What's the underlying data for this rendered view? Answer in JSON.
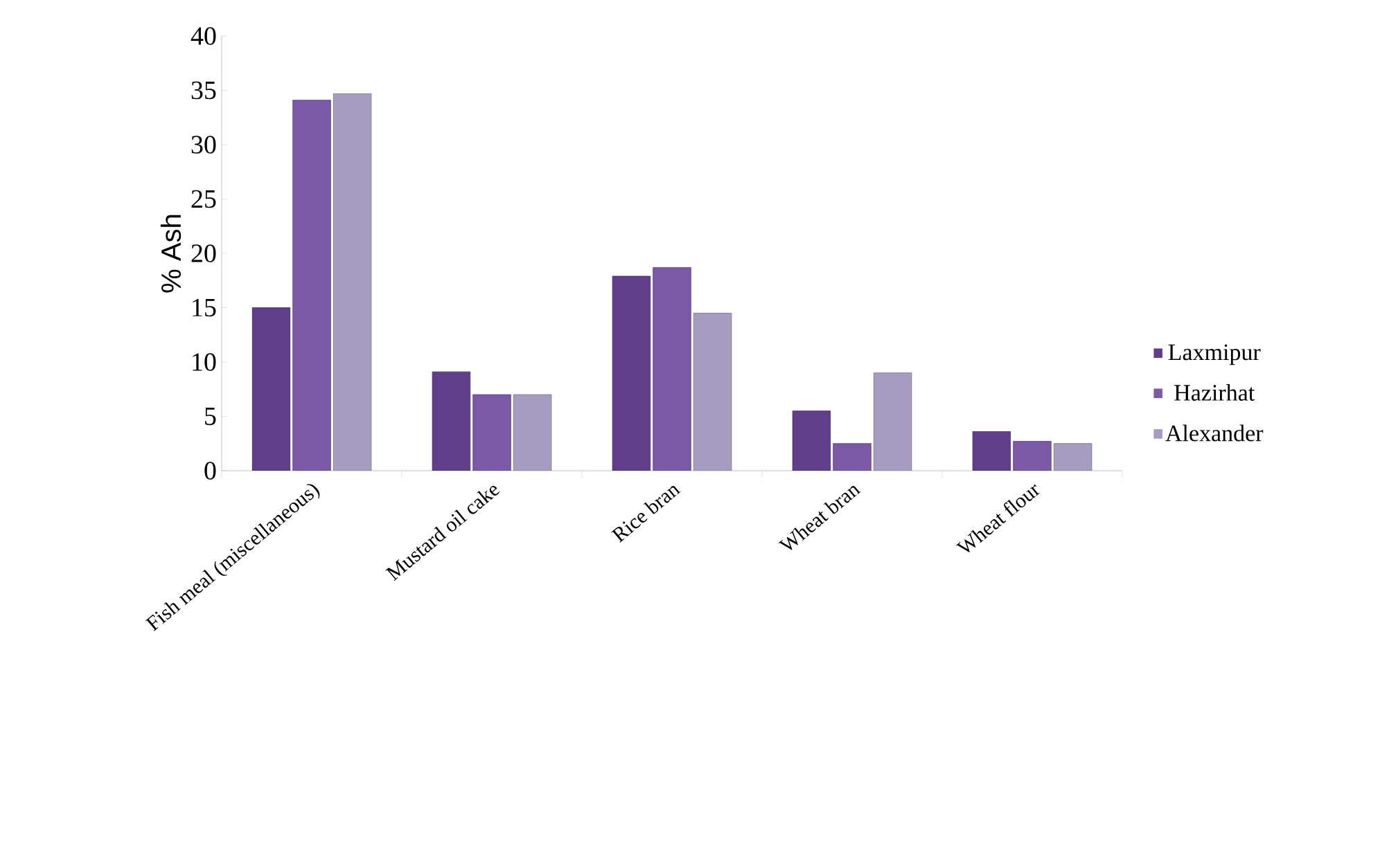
{
  "chart_data": {
    "type": "bar",
    "ylabel": "% Ash",
    "categories": [
      "Fish meal (miscellaneous)",
      "Mustard oil cake",
      "Rice bran",
      "Wheat bran",
      "Wheat flour"
    ],
    "series": [
      {
        "name": "Laxmipur",
        "color": "#5f3f8a",
        "values": [
          15.0,
          9.1,
          17.9,
          5.5,
          3.6
        ]
      },
      {
        "name": "Hazirhat",
        "color": "#7a5aa6",
        "values": [
          34.1,
          7.0,
          18.7,
          2.5,
          2.7
        ]
      },
      {
        "name": "Alexander",
        "color": "#a59cc0",
        "values": [
          34.7,
          7.0,
          14.5,
          9.0,
          2.5
        ]
      }
    ],
    "ylim": [
      0,
      40
    ],
    "yticks": [
      0,
      5,
      10,
      15,
      20,
      25,
      30,
      35,
      40
    ],
    "grid": false,
    "legend": "right"
  }
}
